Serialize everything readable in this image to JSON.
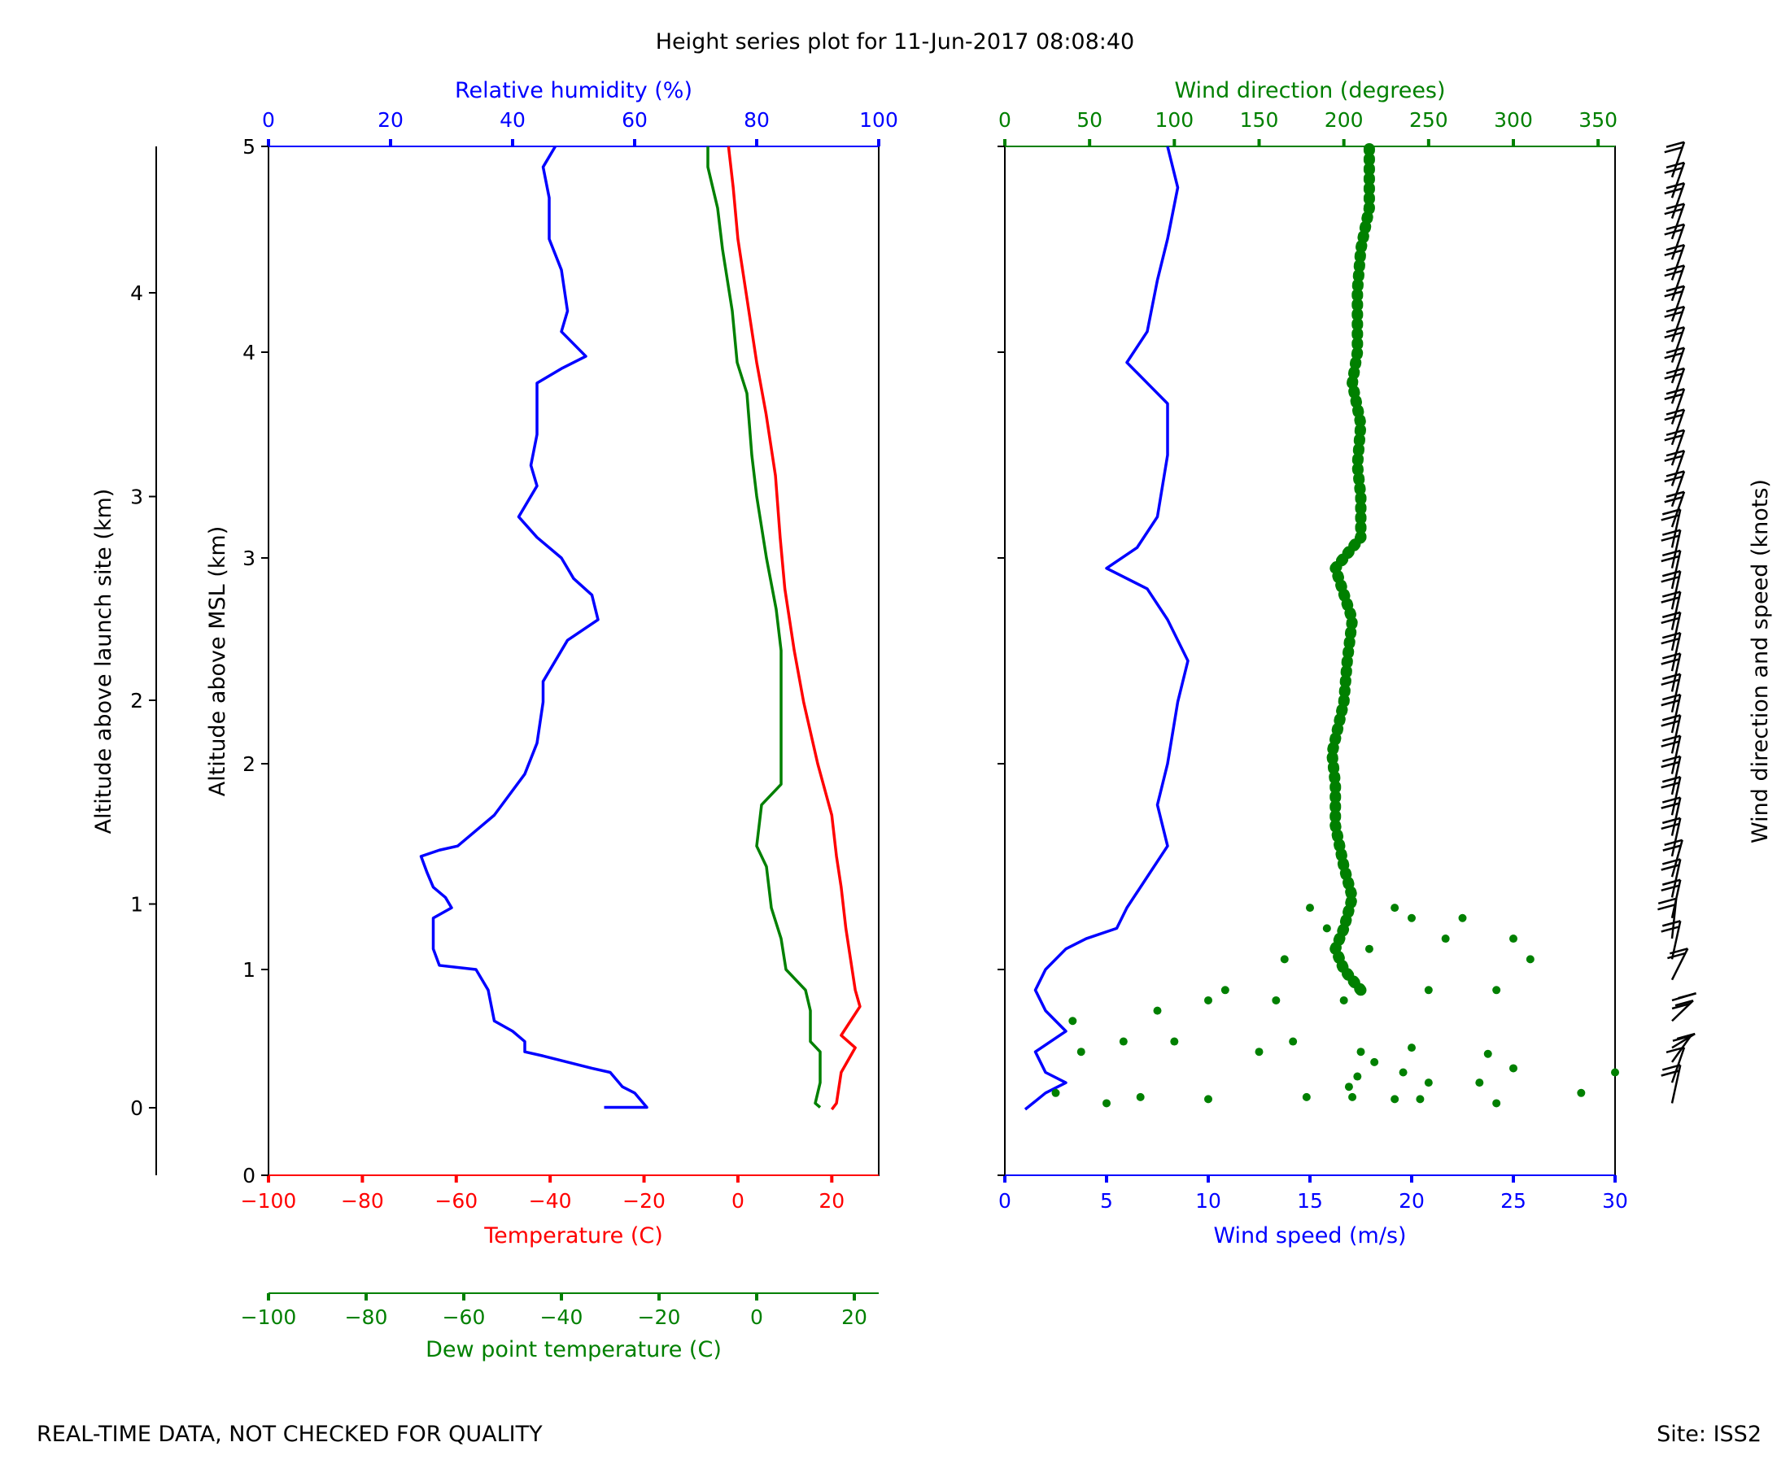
{
  "chart_data": {
    "type": "line",
    "title": "Height series plot for 11-Jun-2017 08:08:40",
    "footer_left": "REAL-TIME DATA, NOT CHECKED FOR QUALITY",
    "footer_right": "Site: ISS2",
    "colors": {
      "temperature": "#ff0000",
      "dewpoint": "#008000",
      "humidity": "#0000ff",
      "wind_speed": "#0000ff",
      "wind_direction": "#008000",
      "barbs": "#000000"
    },
    "axes": {
      "altitude_launch": {
        "label": "Altitude above launch site (km)",
        "ticks": [
          "0",
          "1",
          "2",
          "3",
          "4"
        ]
      },
      "altitude_msl": {
        "label": "Altitude above MSL (km)",
        "ticks": [
          "0",
          "1",
          "2",
          "3",
          "4",
          "5"
        ],
        "range": [
          0,
          5
        ]
      },
      "humidity": {
        "label": "Relative humidity (%)",
        "ticks": [
          "0",
          "20",
          "40",
          "60",
          "80",
          "100"
        ],
        "range": [
          0,
          100
        ]
      },
      "temperature": {
        "label": "Temperature (C)",
        "ticks": [
          "−100",
          "−80",
          "−60",
          "−40",
          "−20",
          "0",
          "20"
        ],
        "range": [
          -100,
          30
        ]
      },
      "dewpoint": {
        "label": "Dew point temperature (C)",
        "ticks": [
          "−100",
          "−80",
          "−60",
          "−40",
          "−20",
          "0",
          "20"
        ],
        "range": [
          -100,
          25
        ]
      },
      "wind_direction": {
        "label": "Wind direction (degrees)",
        "ticks": [
          "0",
          "50",
          "100",
          "150",
          "200",
          "250",
          "300",
          "350"
        ],
        "range": [
          0,
          360
        ]
      },
      "wind_speed": {
        "label": "Wind speed (m/s)",
        "ticks": [
          "0",
          "5",
          "10",
          "15",
          "20",
          "25",
          "30"
        ],
        "range": [
          0,
          30
        ]
      },
      "barbs": {
        "label": "Wind direction and speed (knots)"
      }
    },
    "series": [
      {
        "name": "Temperature (C)",
        "axis": "temperature",
        "points": [
          [
            20,
            0.32
          ],
          [
            21,
            0.35
          ],
          [
            22,
            0.5
          ],
          [
            24,
            0.58
          ],
          [
            25,
            0.62
          ],
          [
            22,
            0.68
          ],
          [
            24,
            0.75
          ],
          [
            26,
            0.82
          ],
          [
            25,
            0.9
          ],
          [
            24,
            1.05
          ],
          [
            23,
            1.2
          ],
          [
            22,
            1.4
          ],
          [
            21,
            1.55
          ],
          [
            20,
            1.75
          ],
          [
            17,
            2.0
          ],
          [
            14,
            2.3
          ],
          [
            12,
            2.55
          ],
          [
            10,
            2.85
          ],
          [
            9,
            3.1
          ],
          [
            8,
            3.4
          ],
          [
            6,
            3.7
          ],
          [
            4,
            3.95
          ],
          [
            2,
            4.25
          ],
          [
            0,
            4.55
          ],
          [
            -1,
            4.8
          ],
          [
            -2,
            5.0
          ]
        ]
      },
      {
        "name": "Dew point temperature (C)",
        "axis": "dewpoint",
        "points": [
          [
            13,
            0.33
          ],
          [
            12,
            0.35
          ],
          [
            13,
            0.45
          ],
          [
            13,
            0.6
          ],
          [
            11,
            0.65
          ],
          [
            11,
            0.8
          ],
          [
            10,
            0.9
          ],
          [
            6,
            1.0
          ],
          [
            5,
            1.15
          ],
          [
            3,
            1.3
          ],
          [
            2,
            1.5
          ],
          [
            0,
            1.6
          ],
          [
            1,
            1.8
          ],
          [
            5,
            1.9
          ],
          [
            5,
            2.0
          ],
          [
            5,
            2.3
          ],
          [
            5,
            2.55
          ],
          [
            4,
            2.75
          ],
          [
            2,
            3.0
          ],
          [
            0,
            3.3
          ],
          [
            -1,
            3.5
          ],
          [
            -2,
            3.8
          ],
          [
            -4,
            3.95
          ],
          [
            -5,
            4.2
          ],
          [
            -7,
            4.5
          ],
          [
            -8,
            4.7
          ],
          [
            -10,
            4.9
          ],
          [
            -10,
            5.0
          ]
        ]
      },
      {
        "name": "Relative humidity (%)",
        "axis": "humidity",
        "points": [
          [
            55,
            0.33
          ],
          [
            62,
            0.33
          ],
          [
            60,
            0.4
          ],
          [
            58,
            0.43
          ],
          [
            56,
            0.5
          ],
          [
            53,
            0.52
          ],
          [
            45,
            0.58
          ],
          [
            42,
            0.6
          ],
          [
            42,
            0.65
          ],
          [
            40,
            0.7
          ],
          [
            37,
            0.75
          ],
          [
            36,
            0.9
          ],
          [
            34,
            1.0
          ],
          [
            28,
            1.02
          ],
          [
            27,
            1.1
          ],
          [
            27,
            1.25
          ],
          [
            30,
            1.3
          ],
          [
            29,
            1.35
          ],
          [
            27,
            1.4
          ],
          [
            26,
            1.47
          ],
          [
            25,
            1.55
          ],
          [
            28,
            1.58
          ],
          [
            31,
            1.6
          ],
          [
            37,
            1.75
          ],
          [
            42,
            1.95
          ],
          [
            44,
            2.1
          ],
          [
            45,
            2.3
          ],
          [
            45,
            2.4
          ],
          [
            49,
            2.6
          ],
          [
            54,
            2.7
          ],
          [
            53,
            2.82
          ],
          [
            50,
            2.9
          ],
          [
            48,
            3.0
          ],
          [
            44,
            3.1
          ],
          [
            41,
            3.2
          ],
          [
            44,
            3.35
          ],
          [
            43,
            3.45
          ],
          [
            44,
            3.6
          ],
          [
            44,
            3.85
          ],
          [
            48,
            3.92
          ],
          [
            52,
            3.98
          ],
          [
            48,
            4.1
          ],
          [
            49,
            4.2
          ],
          [
            48,
            4.4
          ],
          [
            46,
            4.55
          ],
          [
            46,
            4.75
          ],
          [
            45,
            4.9
          ],
          [
            47,
            5.0
          ]
        ]
      },
      {
        "name": "Wind speed (m/s)",
        "axis": "wind_speed",
        "points": [
          [
            1,
            0.32
          ],
          [
            2,
            0.4
          ],
          [
            3,
            0.45
          ],
          [
            2,
            0.5
          ],
          [
            1.5,
            0.6
          ],
          [
            3,
            0.7
          ],
          [
            2,
            0.8
          ],
          [
            1.5,
            0.9
          ],
          [
            2,
            1.0
          ],
          [
            3,
            1.1
          ],
          [
            4,
            1.15
          ],
          [
            5.5,
            1.2
          ],
          [
            6,
            1.3
          ],
          [
            7,
            1.45
          ],
          [
            8,
            1.6
          ],
          [
            7.5,
            1.8
          ],
          [
            8,
            2.0
          ],
          [
            8.5,
            2.3
          ],
          [
            9,
            2.5
          ],
          [
            8,
            2.7
          ],
          [
            7,
            2.85
          ],
          [
            5,
            2.95
          ],
          [
            6.5,
            3.05
          ],
          [
            7.5,
            3.2
          ],
          [
            8,
            3.5
          ],
          [
            8,
            3.75
          ],
          [
            7,
            3.85
          ],
          [
            6,
            3.95
          ],
          [
            7,
            4.1
          ],
          [
            7.5,
            4.35
          ],
          [
            8,
            4.55
          ],
          [
            8.5,
            4.8
          ],
          [
            8,
            5.0
          ]
        ]
      },
      {
        "name": "Wind direction (degrees)",
        "axis": "wind_direction",
        "points": [
          [
            210,
            0.9
          ],
          [
            200,
            1.0
          ],
          [
            195,
            1.1
          ],
          [
            200,
            1.2
          ],
          [
            205,
            1.35
          ],
          [
            200,
            1.5
          ],
          [
            195,
            1.7
          ],
          [
            195,
            1.9
          ],
          [
            193,
            2.05
          ],
          [
            200,
            2.3
          ],
          [
            202,
            2.5
          ],
          [
            205,
            2.7
          ],
          [
            195,
            2.95
          ],
          [
            210,
            3.1
          ],
          [
            210,
            3.3
          ],
          [
            208,
            3.45
          ],
          [
            210,
            3.65
          ],
          [
            205,
            3.85
          ],
          [
            208,
            4.0
          ],
          [
            208,
            4.3
          ],
          [
            210,
            4.5
          ],
          [
            215,
            4.7
          ],
          [
            215,
            4.85
          ],
          [
            215,
            5.0
          ]
        ]
      },
      {
        "name": "Wind direction (degrees) scatter",
        "axis": "wind_direction",
        "points": [
          [
            30,
            0.4
          ],
          [
            60,
            0.35
          ],
          [
            80,
            0.38
          ],
          [
            120,
            0.37
          ],
          [
            178,
            0.38
          ],
          [
            205,
            0.38
          ],
          [
            230,
            0.37
          ],
          [
            245,
            0.37
          ],
          [
            290,
            0.35
          ],
          [
            340,
            0.4
          ],
          [
            360,
            0.5
          ],
          [
            280,
            0.45
          ],
          [
            250,
            0.45
          ],
          [
            235,
            0.5
          ],
          [
            218,
            0.55
          ],
          [
            208,
            0.48
          ],
          [
            203,
            0.43
          ],
          [
            45,
            0.6
          ],
          [
            70,
            0.65
          ],
          [
            100,
            0.65
          ],
          [
            150,
            0.6
          ],
          [
            170,
            0.65
          ],
          [
            210,
            0.6
          ],
          [
            240,
            0.62
          ],
          [
            285,
            0.59
          ],
          [
            300,
            0.52
          ],
          [
            40,
            0.75
          ],
          [
            90,
            0.8
          ],
          [
            120,
            0.85
          ],
          [
            130,
            0.9
          ],
          [
            160,
            0.85
          ],
          [
            200,
            0.85
          ],
          [
            250,
            0.9
          ],
          [
            290,
            0.9
          ],
          [
            165,
            1.05
          ],
          [
            215,
            1.1
          ],
          [
            260,
            1.15
          ],
          [
            300,
            1.15
          ],
          [
            310,
            1.05
          ],
          [
            270,
            1.25
          ],
          [
            240,
            1.25
          ],
          [
            230,
            1.3
          ],
          [
            190,
            1.2
          ],
          [
            180,
            1.3
          ]
        ]
      }
    ],
    "barbs": {
      "points": [
        [
          0.35,
          200,
          15
        ],
        [
          0.45,
          210,
          10
        ],
        [
          0.55,
          230,
          5
        ],
        [
          0.62,
          250,
          10
        ],
        [
          0.75,
          240,
          20
        ],
        [
          0.85,
          260,
          10
        ],
        [
          0.95,
          220,
          15
        ],
        [
          1.05,
          200,
          20
        ],
        [
          1.15,
          190,
          15
        ],
        [
          1.25,
          200,
          20
        ],
        [
          1.35,
          200,
          20
        ],
        [
          1.45,
          205,
          20
        ],
        [
          1.55,
          200,
          20
        ],
        [
          1.65,
          200,
          20
        ],
        [
          1.75,
          200,
          20
        ],
        [
          1.85,
          200,
          20
        ],
        [
          1.95,
          200,
          20
        ],
        [
          2.05,
          200,
          20
        ],
        [
          2.15,
          200,
          20
        ],
        [
          2.25,
          200,
          20
        ],
        [
          2.35,
          200,
          20
        ],
        [
          2.45,
          200,
          20
        ],
        [
          2.55,
          200,
          20
        ],
        [
          2.65,
          200,
          20
        ],
        [
          2.75,
          200,
          20
        ],
        [
          2.85,
          200,
          15
        ],
        [
          2.95,
          200,
          15
        ],
        [
          3.05,
          200,
          20
        ],
        [
          3.15,
          210,
          20
        ],
        [
          3.25,
          210,
          20
        ],
        [
          3.35,
          210,
          20
        ],
        [
          3.45,
          210,
          20
        ],
        [
          3.55,
          210,
          20
        ],
        [
          3.65,
          210,
          20
        ],
        [
          3.75,
          210,
          20
        ],
        [
          3.85,
          210,
          20
        ],
        [
          3.95,
          210,
          20
        ],
        [
          4.05,
          210,
          20
        ],
        [
          4.15,
          210,
          20
        ],
        [
          4.25,
          210,
          20
        ],
        [
          4.35,
          210,
          20
        ],
        [
          4.45,
          210,
          20
        ],
        [
          4.55,
          210,
          20
        ],
        [
          4.65,
          210,
          20
        ],
        [
          4.75,
          210,
          20
        ],
        [
          4.85,
          210,
          20
        ]
      ]
    }
  }
}
